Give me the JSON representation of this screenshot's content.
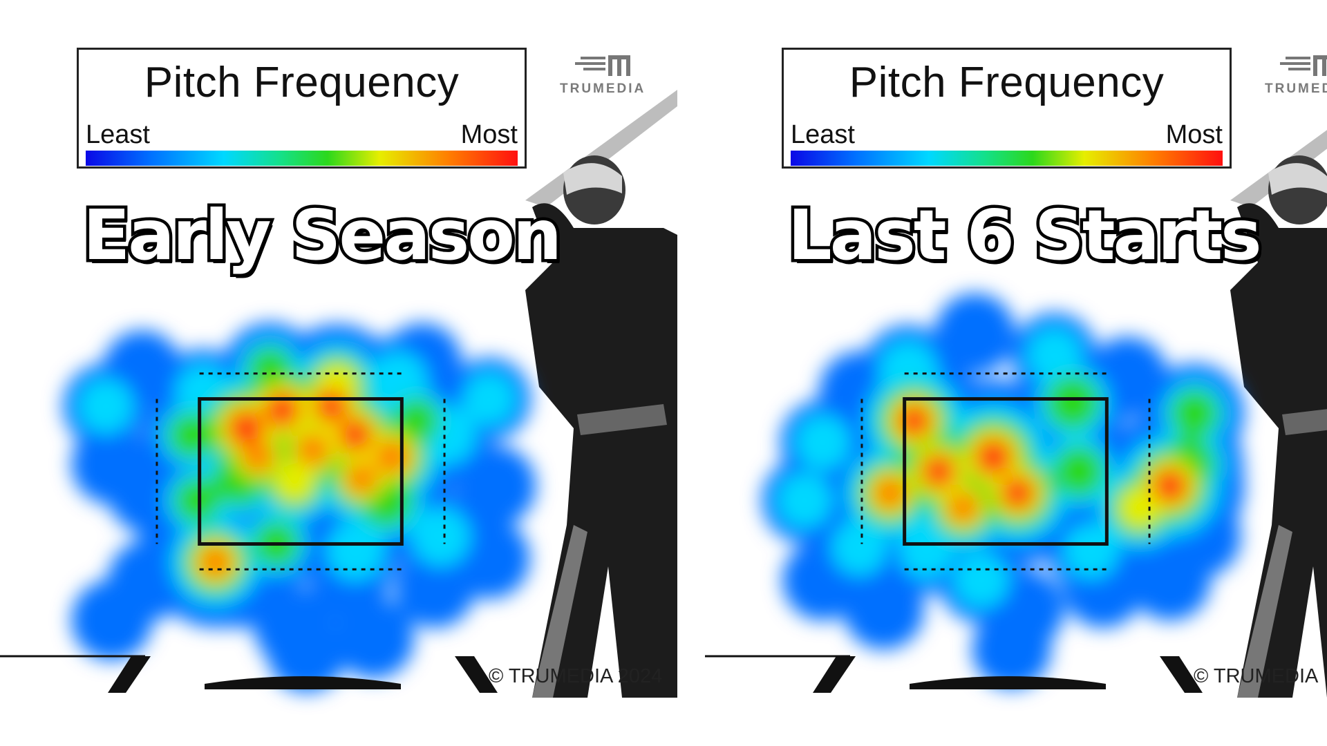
{
  "chart_data": [
    {
      "type": "heatmap",
      "title": "Pitch Frequency",
      "heading": "Early Season",
      "legend": {
        "low_label": "Least",
        "high_label": "Most",
        "placement": "top"
      },
      "colors": [
        "#0a08e6",
        "#0070ff",
        "#00d8ff",
        "#14e08a",
        "#2cd81c",
        "#e6ee00",
        "#ff7e00",
        "#ff1010"
      ],
      "x_range": [
        -1.9,
        1.9
      ],
      "y_range": [
        0.0,
        5.0
      ],
      "points": [
        {
          "x": -0.45,
          "y": 3.1,
          "v": 1.0
        },
        {
          "x": -0.15,
          "y": 3.35,
          "v": 0.95
        },
        {
          "x": 0.25,
          "y": 3.4,
          "v": 0.9
        },
        {
          "x": 0.45,
          "y": 3.0,
          "v": 0.9
        },
        {
          "x": 0.75,
          "y": 2.7,
          "v": 0.85
        },
        {
          "x": 0.1,
          "y": 2.8,
          "v": 0.8
        },
        {
          "x": -0.35,
          "y": 2.7,
          "v": 0.75
        },
        {
          "x": 0.5,
          "y": 2.4,
          "v": 0.75
        },
        {
          "x": -0.05,
          "y": 2.35,
          "v": 0.65
        },
        {
          "x": 0.3,
          "y": 3.7,
          "v": 0.7
        },
        {
          "x": -0.5,
          "y": 2.4,
          "v": 0.6
        },
        {
          "x": 0.7,
          "y": 2.1,
          "v": 0.6
        },
        {
          "x": -0.7,
          "y": 1.25,
          "v": 0.8
        },
        {
          "x": -0.9,
          "y": 3.0,
          "v": 0.45
        },
        {
          "x": -0.85,
          "y": 2.1,
          "v": 0.45
        },
        {
          "x": 0.95,
          "y": 3.2,
          "v": 0.45
        },
        {
          "x": 1.2,
          "y": 3.0,
          "v": 0.4
        },
        {
          "x": 1.15,
          "y": 1.6,
          "v": 0.4
        },
        {
          "x": -0.2,
          "y": 1.5,
          "v": 0.45
        },
        {
          "x": 0.45,
          "y": 1.4,
          "v": 0.4
        },
        {
          "x": -0.25,
          "y": 3.9,
          "v": 0.45
        },
        {
          "x": 0.8,
          "y": 3.75,
          "v": 0.4
        },
        {
          "x": -0.8,
          "y": 3.6,
          "v": 0.35
        },
        {
          "x": -1.6,
          "y": 3.4,
          "v": 0.35
        },
        {
          "x": -1.55,
          "y": 2.6,
          "v": 0.3
        },
        {
          "x": -1.25,
          "y": 2.2,
          "v": 0.3
        },
        {
          "x": -1.0,
          "y": 1.7,
          "v": 0.3
        },
        {
          "x": -1.25,
          "y": 1.0,
          "v": 0.3
        },
        {
          "x": -1.55,
          "y": 0.45,
          "v": 0.3
        },
        {
          "x": -0.05,
          "y": 0.35,
          "v": 0.3
        },
        {
          "x": 0.6,
          "y": 0.2,
          "v": 0.3
        },
        {
          "x": 0.05,
          "y": 0.0,
          "v": 0.28
        },
        {
          "x": 1.55,
          "y": 3.5,
          "v": 0.32
        },
        {
          "x": 1.6,
          "y": 2.3,
          "v": 0.3
        },
        {
          "x": 1.55,
          "y": 1.3,
          "v": 0.3
        },
        {
          "x": 1.1,
          "y": 0.9,
          "v": 0.3
        },
        {
          "x": -1.3,
          "y": 3.9,
          "v": 0.28
        },
        {
          "x": 1.0,
          "y": 4.0,
          "v": 0.28
        },
        {
          "x": -0.5,
          "y": 0.9,
          "v": 0.3
        },
        {
          "x": 0.4,
          "y": 0.95,
          "v": 0.28
        }
      ],
      "copyright": "© TRUMEDIA 2024"
    },
    {
      "type": "heatmap",
      "title": "Pitch Frequency",
      "heading": "Last 6 Starts",
      "legend": {
        "low_label": "Least",
        "high_label": "Most",
        "placement": "top"
      },
      "colors": [
        "#0a08e6",
        "#0070ff",
        "#00d8ff",
        "#14e08a",
        "#2cd81c",
        "#e6ee00",
        "#ff7e00",
        "#ff1010"
      ],
      "x_range": [
        -1.9,
        1.9
      ],
      "y_range": [
        0.0,
        5.0
      ],
      "points": [
        {
          "x": -0.75,
          "y": 3.2,
          "v": 0.9
        },
        {
          "x": -0.55,
          "y": 2.5,
          "v": 0.9
        },
        {
          "x": -0.1,
          "y": 2.7,
          "v": 1.0
        },
        {
          "x": 0.1,
          "y": 2.2,
          "v": 0.9
        },
        {
          "x": -0.35,
          "y": 2.0,
          "v": 0.75
        },
        {
          "x": -0.95,
          "y": 2.2,
          "v": 0.8
        },
        {
          "x": 0.55,
          "y": 3.45,
          "v": 0.6
        },
        {
          "x": 0.6,
          "y": 2.5,
          "v": 0.55
        },
        {
          "x": 1.35,
          "y": 2.3,
          "v": 0.95
        },
        {
          "x": 1.1,
          "y": 2.0,
          "v": 0.7
        },
        {
          "x": 1.5,
          "y": 2.6,
          "v": 0.6
        },
        {
          "x": 1.55,
          "y": 3.3,
          "v": 0.5
        },
        {
          "x": -0.8,
          "y": 3.9,
          "v": 0.4
        },
        {
          "x": 0.4,
          "y": 4.1,
          "v": 0.35
        },
        {
          "x": -0.25,
          "y": 4.4,
          "v": 0.3
        },
        {
          "x": -1.5,
          "y": 2.9,
          "v": 0.35
        },
        {
          "x": -1.65,
          "y": 2.1,
          "v": 0.35
        },
        {
          "x": -1.2,
          "y": 1.45,
          "v": 0.35
        },
        {
          "x": -1.5,
          "y": 1.0,
          "v": 0.3
        },
        {
          "x": -1.0,
          "y": 0.6,
          "v": 0.3
        },
        {
          "x": -0.2,
          "y": 1.0,
          "v": 0.35
        },
        {
          "x": 0.15,
          "y": 0.6,
          "v": 0.3
        },
        {
          "x": 0.05,
          "y": 0.05,
          "v": 0.28
        },
        {
          "x": 0.8,
          "y": 0.9,
          "v": 0.3
        },
        {
          "x": 1.35,
          "y": 1.0,
          "v": 0.3
        },
        {
          "x": 1.6,
          "y": 1.6,
          "v": 0.3
        },
        {
          "x": -0.65,
          "y": 1.4,
          "v": 0.35
        },
        {
          "x": 0.7,
          "y": 1.4,
          "v": 0.35
        },
        {
          "x": -1.2,
          "y": 3.6,
          "v": 0.3
        },
        {
          "x": 1.0,
          "y": 3.8,
          "v": 0.3
        }
      ],
      "copyright": "© TRUMEDIA"
    }
  ],
  "brand": {
    "logo_text": "TRUMEDIA"
  }
}
